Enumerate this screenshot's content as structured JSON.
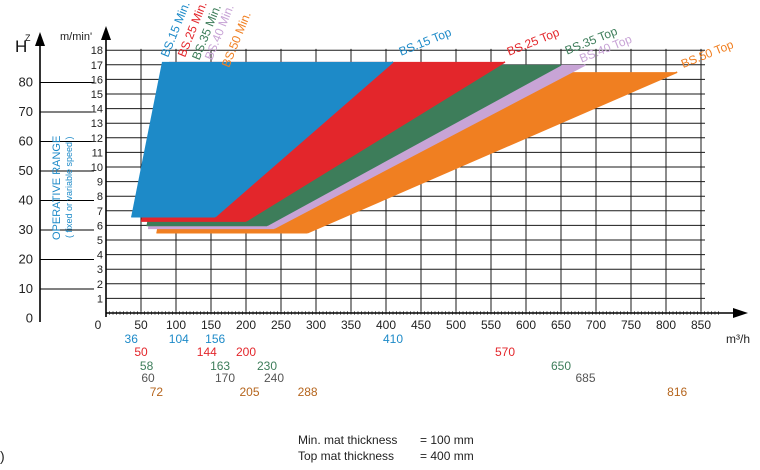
{
  "chart_data": {
    "type": "area",
    "x": {
      "unit": "m³/h",
      "ticks": [
        0,
        50,
        100,
        150,
        200,
        250,
        300,
        350,
        400,
        450,
        500,
        550,
        600,
        650,
        700,
        750,
        800,
        850
      ],
      "range": [
        0,
        880
      ]
    },
    "y_speed": {
      "unit": "m/min'",
      "ticks": [
        1,
        2,
        3,
        4,
        5,
        6,
        7,
        8,
        9,
        10,
        11,
        12,
        13,
        14,
        15,
        16,
        17,
        18
      ],
      "range": [
        0,
        18.5
      ]
    },
    "y_hz": {
      "unit": "Hz",
      "ticks": [
        0,
        10,
        20,
        30,
        40,
        50,
        60,
        70,
        80
      ]
    },
    "side_label": {
      "title": "OPERATIVE RANGE",
      "subtitle": "( fixed or variable speed )"
    },
    "series": [
      {
        "name": "BS.50",
        "min_label": "BS.50 Min.",
        "top_label": "BS.50 Top",
        "color": "#f07f21",
        "points": [
          [
            72,
            5.5
          ],
          [
            110,
            16.5
          ],
          [
            816,
            16.5
          ],
          [
            288,
            5.5
          ]
        ],
        "capacities": [
          "72",
          "205",
          "288",
          "816"
        ]
      },
      {
        "name": "BS.40",
        "min_label": "BS.40 Min.",
        "top_label": "BS.40 Top",
        "color": "#c8a4d6",
        "points": [
          [
            60,
            5.8
          ],
          [
            100,
            17.0
          ],
          [
            685,
            17.0
          ],
          [
            240,
            5.8
          ]
        ],
        "capacities": [
          "60",
          "170",
          "240",
          "685"
        ]
      },
      {
        "name": "BS.35",
        "min_label": "BS.35 Min.",
        "top_label": "BS.35 Top",
        "color": "#3d7d5a",
        "points": [
          [
            58,
            6.0
          ],
          [
            96,
            17.0
          ],
          [
            650,
            17.0
          ],
          [
            230,
            6.0
          ]
        ],
        "capacities": [
          "58",
          "163",
          "230",
          "650"
        ]
      },
      {
        "name": "BS.25",
        "min_label": "BS.25 Min.",
        "top_label": "BS.25 Top",
        "color": "#e3262b",
        "points": [
          [
            50,
            6.3
          ],
          [
            90,
            17.2
          ],
          [
            570,
            17.2
          ],
          [
            200,
            6.3
          ]
        ],
        "capacities": [
          "50",
          "144",
          "200",
          "570"
        ]
      },
      {
        "name": "BS.15",
        "min_label": "BS.15 Min.",
        "top_label": "BS.15 Top",
        "color": "#1d8ac8",
        "points": [
          [
            36,
            6.6
          ],
          [
            80,
            17.2
          ],
          [
            410,
            17.2
          ],
          [
            156,
            6.6
          ]
        ],
        "capacities": [
          "36",
          "104",
          "156",
          "410"
        ]
      }
    ]
  },
  "notes": [
    {
      "label": "Min. mat thickness",
      "value": "= 100 mm"
    },
    {
      "label": "Top mat thickness",
      "value": "= 400 mm"
    }
  ],
  "stray_char": ")"
}
